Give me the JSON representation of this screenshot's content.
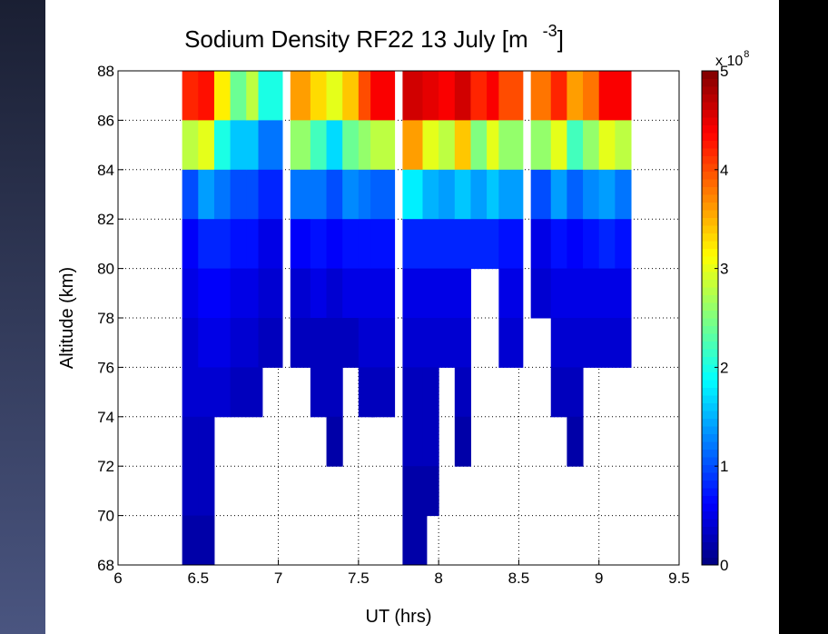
{
  "chart_data": {
    "type": "heatmap",
    "title": "Sodium Density RF22 13 July [m",
    "title_superscript": "-3",
    "title_end": "]",
    "xlabel": "UT (hrs)",
    "ylabel": "Altitude (km)",
    "colorbar_label": "x 10",
    "colorbar_superscript": "8",
    "colormap": "jet",
    "grid": true,
    "xlim": [
      6,
      9.5
    ],
    "xticks": [
      6,
      6.5,
      7,
      7.5,
      8,
      8.5,
      9,
      9.5
    ],
    "ylim": [
      68,
      88
    ],
    "yticks": [
      68,
      70,
      72,
      74,
      76,
      78,
      80,
      82,
      84,
      86,
      88
    ],
    "clim": [
      0,
      5
    ],
    "cticks": [
      0,
      1,
      2,
      3,
      4,
      5
    ],
    "x": [
      6.45,
      6.55,
      6.65,
      6.75,
      6.85,
      6.95,
      7.15,
      7.25,
      7.35,
      7.45,
      7.55,
      7.65,
      7.85,
      7.95,
      8.05,
      8.15,
      8.25,
      8.35,
      8.45,
      8.65,
      8.75,
      8.85,
      8.95,
      9.05,
      9.15
    ],
    "y": [
      87,
      85,
      83,
      81,
      79,
      77,
      75,
      73,
      71,
      69
    ],
    "values": [
      [
        4.2,
        2.8,
        1.0,
        0.6,
        0.5,
        0.4,
        0.4,
        0.3,
        0.3,
        0.2
      ],
      [
        4.3,
        3.0,
        1.4,
        0.8,
        0.6,
        0.5,
        0.4,
        0.3,
        0.3,
        0.2
      ],
      [
        3.2,
        2.0,
        1.2,
        0.8,
        0.6,
        0.5,
        0.4,
        null,
        null,
        null
      ],
      [
        2.4,
        1.6,
        1.0,
        0.7,
        0.5,
        0.4,
        0.3,
        null,
        null,
        null
      ],
      [
        2.8,
        1.6,
        1.0,
        0.7,
        0.5,
        0.4,
        0.3,
        null,
        null,
        null
      ],
      [
        2.0,
        1.2,
        0.8,
        0.5,
        0.4,
        0.3,
        null,
        null,
        null,
        null
      ],
      [
        3.6,
        2.6,
        1.2,
        0.6,
        0.4,
        0.3,
        null,
        null,
        null,
        null
      ],
      [
        3.3,
        2.2,
        1.2,
        0.7,
        0.5,
        0.3,
        0.3,
        null,
        null,
        null
      ],
      [
        3.0,
        1.7,
        1.0,
        0.6,
        0.4,
        0.3,
        0.3,
        0.2,
        null,
        null
      ],
      [
        3.4,
        2.4,
        1.3,
        0.7,
        0.5,
        0.3,
        null,
        null,
        null,
        null
      ],
      [
        4.0,
        2.6,
        1.2,
        0.7,
        0.5,
        0.4,
        0.3,
        null,
        null,
        null
      ],
      [
        4.4,
        2.8,
        1.1,
        0.7,
        0.5,
        0.4,
        0.3,
        null,
        null,
        null
      ],
      [
        4.6,
        3.6,
        1.8,
        0.8,
        0.5,
        0.4,
        0.3,
        0.3,
        0.2,
        0.2
      ],
      [
        4.5,
        3.0,
        1.5,
        0.8,
        0.5,
        0.4,
        0.3,
        0.3,
        0.2,
        null
      ],
      [
        4.4,
        2.8,
        1.4,
        0.8,
        0.5,
        0.4,
        null,
        null,
        null,
        null
      ],
      [
        4.6,
        3.4,
        1.6,
        0.8,
        0.5,
        0.4,
        0.3,
        0.2,
        null,
        null
      ],
      [
        4.2,
        2.5,
        1.4,
        0.8,
        null,
        null,
        null,
        null,
        null,
        null
      ],
      [
        4.4,
        3.0,
        1.6,
        0.8,
        null,
        null,
        null,
        null,
        null,
        null
      ],
      [
        4.0,
        2.6,
        1.4,
        0.7,
        0.5,
        0.4,
        null,
        null,
        null,
        null
      ],
      [
        3.8,
        2.6,
        1.0,
        0.5,
        0.4,
        null,
        null,
        null,
        null,
        null
      ],
      [
        4.2,
        3.0,
        1.4,
        0.7,
        0.5,
        0.4,
        0.3,
        null,
        null,
        null
      ],
      [
        3.6,
        2.2,
        1.1,
        0.6,
        0.5,
        0.4,
        0.3,
        0.2,
        null,
        null
      ],
      [
        3.8,
        2.6,
        1.3,
        0.7,
        0.5,
        0.4,
        null,
        null,
        null,
        null
      ],
      [
        4.4,
        3.0,
        1.4,
        0.8,
        0.5,
        0.4,
        null,
        null,
        null,
        null
      ],
      [
        4.4,
        2.8,
        1.2,
        0.7,
        0.5,
        0.4,
        null,
        null,
        null,
        null
      ]
    ]
  }
}
